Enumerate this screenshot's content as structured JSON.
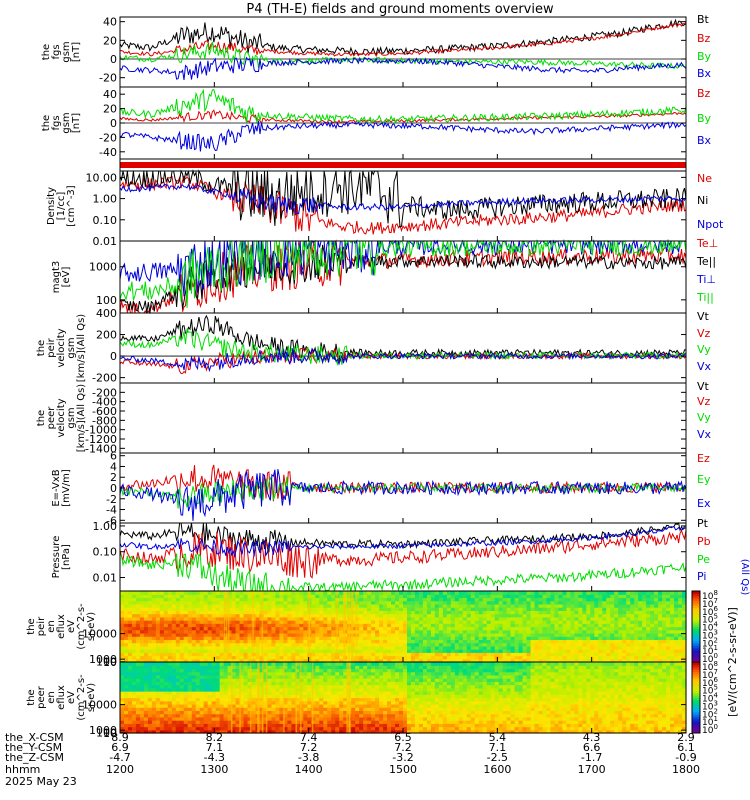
{
  "title": "P4 (TH-E) fields and ground moments overview",
  "colors": {
    "black": "#000000",
    "red": "#e00000",
    "green": "#00dd00",
    "blue": "#0000dd",
    "dark_blue": "#0010c0",
    "frame": "#000000"
  },
  "chart_data": [
    {
      "type": "line",
      "id": "fgs_gsm_1",
      "ylabel": [
        "the",
        "fgs",
        "gsm",
        "[nT]"
      ],
      "ylim": [
        -30,
        45
      ],
      "yticks": [
        40,
        20,
        0,
        -20
      ],
      "zero_line": true,
      "series": [
        {
          "name": "Bt",
          "color": "black",
          "values": [
            15,
            12,
            25,
            30,
            18,
            12,
            10,
            9,
            8,
            9,
            10,
            12,
            14,
            17,
            20,
            24,
            28,
            35,
            40
          ],
          "noise": 4,
          "burst": [
            0.1,
            0.25
          ]
        },
        {
          "name": "Bz",
          "color": "red",
          "values": [
            8,
            5,
            10,
            15,
            10,
            8,
            6,
            5,
            5,
            6,
            8,
            10,
            12,
            15,
            18,
            22,
            27,
            33,
            38
          ],
          "noise": 2,
          "burst": [
            0.1,
            0.25
          ]
        },
        {
          "name": "By",
          "color": "green",
          "values": [
            2,
            0,
            5,
            10,
            0,
            -2,
            -2,
            -1,
            -1,
            -2,
            -2,
            -3,
            -3,
            -3,
            -4,
            -5,
            -6,
            -7,
            -8
          ],
          "noise": 3,
          "burst": [
            0.1,
            0.25
          ]
        },
        {
          "name": "Bx",
          "color": "blue",
          "values": [
            -10,
            -12,
            -15,
            -8,
            -6,
            -4,
            -3,
            -2,
            -2,
            -2,
            -3,
            -5,
            -8,
            -10,
            -12,
            -13,
            -10,
            -8,
            -6
          ],
          "noise": 3,
          "burst": [
            0.1,
            0.25
          ]
        }
      ],
      "legend": [
        "Bt",
        "Bz",
        "By",
        "Bx"
      ],
      "legend_colors": [
        "black",
        "red",
        "green",
        "blue"
      ]
    },
    {
      "type": "line",
      "id": "fgs_gsm_2",
      "ylabel": [
        "the",
        "fgs",
        "gsm",
        "[nT]"
      ],
      "ylim": [
        -50,
        50
      ],
      "yticks": [
        40,
        20,
        0,
        -20,
        -40
      ],
      "zero_line": true,
      "series": [
        {
          "name": "Bz",
          "color": "red",
          "values": [
            6,
            4,
            8,
            12,
            6,
            4,
            3,
            2,
            2,
            3,
            4,
            5,
            6,
            7,
            8,
            9,
            10,
            12,
            14
          ],
          "noise": 2,
          "burst": [
            0.1,
            0.25
          ]
        },
        {
          "name": "By",
          "color": "green",
          "values": [
            15,
            12,
            25,
            35,
            15,
            10,
            8,
            6,
            5,
            5,
            6,
            7,
            8,
            9,
            10,
            12,
            14,
            16,
            18
          ],
          "noise": 5,
          "burst": [
            0.1,
            0.25
          ]
        },
        {
          "name": "Bx",
          "color": "blue",
          "values": [
            -15,
            -20,
            -25,
            -30,
            -10,
            -6,
            -4,
            -3,
            -3,
            -4,
            -5,
            -8,
            -10,
            -12,
            -10,
            -8,
            -6,
            -4,
            -2
          ],
          "noise": 4,
          "burst": [
            0.1,
            0.25
          ]
        }
      ],
      "legend": [
        "Bz",
        "By",
        "Bx"
      ],
      "legend_colors": [
        "red",
        "green",
        "blue"
      ]
    },
    {
      "type": "bar",
      "id": "mode_bar",
      "color": "red"
    },
    {
      "type": "line",
      "id": "density",
      "log": true,
      "ylabel": [
        "Density",
        "[1/cc]",
        "[cm^-3]"
      ],
      "ylim": [
        0.01,
        20
      ],
      "yticks": [
        10.0,
        1.0,
        0.1,
        0.01
      ],
      "ytick_labels": [
        "10.00",
        "1.00",
        "0.10",
        "0.01"
      ],
      "series": [
        {
          "name": "Ne",
          "color": "red",
          "values": [
            5,
            5,
            6,
            2,
            0.8,
            0.3,
            0.1,
            0.05,
            0.04,
            0.05,
            0.06,
            0.08,
            0.1,
            0.12,
            0.15,
            0.2,
            0.3,
            0.4,
            0.5
          ],
          "noise": 0.3,
          "burst": [
            0.2,
            0.35
          ]
        },
        {
          "name": "Ni",
          "color": "black",
          "values": [
            10,
            10,
            12,
            4,
            2,
            1,
            3,
            5,
            3,
            0.5,
            0.3,
            0.3,
            0.4,
            0.5,
            0.6,
            0.7,
            0.8,
            0.9,
            1.0
          ],
          "noise": 0.5,
          "burst": [
            0.2,
            0.5
          ]
        },
        {
          "name": "Npot",
          "color": "blue",
          "values": [
            3,
            3,
            4,
            2,
            1,
            0.5,
            0.5,
            0.4,
            0.4,
            0.4,
            0.5,
            0.6,
            0.7,
            0.8,
            0.8,
            0.9,
            0.9,
            1.0,
            1.0
          ],
          "noise": 0.15,
          "burst": [
            0.2,
            0.35
          ]
        }
      ],
      "legend": [
        "Ne",
        "Ni",
        "Npot"
      ],
      "legend_colors": [
        "red",
        "black",
        "blue"
      ]
    },
    {
      "type": "line",
      "id": "temperature",
      "log": true,
      "ylabel": [
        "magt3",
        "[eV]"
      ],
      "ylim": [
        40,
        6000
      ],
      "yticks": [
        1000,
        100
      ],
      "ytick_labels": [
        "1000",
        "100"
      ],
      "series": [
        {
          "name": "Te⊥",
          "color": "red",
          "values": [
            60,
            50,
            150,
            400,
            800,
            1000,
            1200,
            1400,
            1500,
            1600,
            1700,
            1800,
            1900,
            2000,
            2000,
            2100,
            2100,
            2200,
            2200
          ],
          "noise": 0.25,
          "burst": [
            0.1,
            0.4
          ]
        },
        {
          "name": "Te||",
          "color": "black",
          "values": [
            70,
            60,
            180,
            500,
            900,
            1100,
            1300,
            1400,
            1500,
            1500,
            1500,
            1500,
            1400,
            1400,
            1400,
            1400,
            1300,
            1300,
            1300
          ],
          "noise": 0.2,
          "burst": [
            0.1,
            0.4
          ]
        },
        {
          "name": "Ti⊥",
          "color": "blue",
          "values": [
            600,
            700,
            800,
            1500,
            2500,
            3000,
            3500,
            4000,
            4200,
            4300,
            4400,
            4500,
            4500,
            4600,
            4600,
            4600,
            4700,
            4700,
            4700
          ],
          "noise": 0.3,
          "burst": [
            0.1,
            0.45
          ]
        },
        {
          "name": "Ti||",
          "color": "green",
          "values": [
            200,
            180,
            300,
            1000,
            2000,
            2800,
            3200,
            3600,
            3800,
            3900,
            4000,
            4100,
            4100,
            4200,
            4200,
            4300,
            4300,
            4300,
            4400
          ],
          "noise": 0.3,
          "burst": [
            0.1,
            0.45
          ]
        }
      ],
      "legend": [
        "Te⊥",
        "Te||",
        "Ti⊥",
        "Ti||"
      ],
      "legend_colors": [
        "red",
        "black",
        "blue",
        "green"
      ]
    },
    {
      "type": "line",
      "id": "peir_velocity",
      "ylabel": [
        "the",
        "peir",
        "velocity",
        "gsm",
        "[km/s](All Qs)"
      ],
      "ylim": [
        -250,
        400
      ],
      "yticks": [
        400,
        200,
        0,
        -200
      ],
      "zero_line": true,
      "series": [
        {
          "name": "Vt",
          "color": "black",
          "values": [
            180,
            150,
            250,
            300,
            150,
            80,
            50,
            40,
            30,
            30,
            30,
            30,
            30,
            30,
            30,
            30,
            30,
            30,
            30
          ],
          "noise": 30,
          "burst": [
            0.1,
            0.4
          ]
        },
        {
          "name": "Vz",
          "color": "red",
          "values": [
            -50,
            -80,
            -100,
            -50,
            -20,
            -10,
            0,
            0,
            0,
            0,
            0,
            0,
            0,
            0,
            0,
            0,
            0,
            0,
            0
          ],
          "noise": 25,
          "burst": [
            0.1,
            0.4
          ]
        },
        {
          "name": "Vy",
          "color": "green",
          "values": [
            120,
            100,
            180,
            100,
            40,
            20,
            10,
            5,
            5,
            5,
            5,
            5,
            5,
            5,
            5,
            5,
            5,
            5,
            5
          ],
          "noise": 30,
          "burst": [
            0.1,
            0.4
          ]
        },
        {
          "name": "Vx",
          "color": "blue",
          "values": [
            -20,
            -40,
            -80,
            -60,
            -10,
            0,
            0,
            0,
            0,
            0,
            0,
            0,
            0,
            0,
            0,
            0,
            0,
            0,
            0
          ],
          "noise": 25,
          "burst": [
            0.1,
            0.4
          ]
        }
      ],
      "legend": [
        "Vt",
        "Vz",
        "Vy",
        "Vx"
      ],
      "legend_colors": [
        "black",
        "red",
        "green",
        "blue"
      ]
    },
    {
      "type": "line",
      "id": "peer_velocity",
      "ylabel": [
        "the",
        "peer",
        "velocity",
        "gsm",
        "[km/s](All Qs)"
      ],
      "ylim": [
        -1500,
        0
      ],
      "yticks": [
        -200,
        -400,
        -600,
        -800,
        -1000,
        -1200,
        -1400
      ],
      "series": [],
      "legend": [
        "Vt",
        "Vz",
        "Vy",
        "Vx"
      ],
      "legend_colors": [
        "black",
        "red",
        "green",
        "blue"
      ]
    },
    {
      "type": "line",
      "id": "efield",
      "ylabel": [
        "E=-VxB",
        "[mV/m]"
      ],
      "ylim": [
        -6.5,
        6.5
      ],
      "yticks": [
        6,
        4,
        2,
        0,
        -2,
        -4,
        -6
      ],
      "series": [
        {
          "name": "Ez",
          "color": "red",
          "values": [
            0.5,
            0.8,
            2,
            1.5,
            0.5,
            0.3,
            0.2,
            0.1,
            0.1,
            0.1,
            0.1,
            0.1,
            0.1,
            0.1,
            0.1,
            0.1,
            0.1,
            0.1,
            0.1
          ],
          "noise": 1.0,
          "burst": [
            0.1,
            0.3
          ]
        },
        {
          "name": "Ey",
          "color": "green",
          "values": [
            -0.5,
            -1,
            -2,
            -1,
            -0.3,
            -0.1,
            0,
            0,
            0,
            0,
            0,
            0,
            0,
            0,
            0,
            0,
            0,
            0,
            0
          ],
          "noise": 0.8,
          "burst": [
            0.1,
            0.3
          ]
        },
        {
          "name": "Ex",
          "color": "blue",
          "values": [
            -0.5,
            -1,
            -3,
            -2,
            -0.5,
            0,
            0,
            0,
            0,
            0,
            0,
            0,
            0,
            0,
            0,
            0,
            0,
            0,
            0
          ],
          "noise": 1.2,
          "burst": [
            0.1,
            0.3
          ]
        }
      ],
      "legend": [
        "Ez",
        "Ey",
        "Ex"
      ],
      "legend_colors": [
        "red",
        "green",
        "blue"
      ]
    },
    {
      "type": "line",
      "id": "pressure",
      "log": true,
      "ylabel": [
        "Pressure",
        "[nPa]"
      ],
      "ylim": [
        0.003,
        1.3
      ],
      "yticks": [
        1.0,
        0.1,
        0.01
      ],
      "ytick_labels": [
        "1.00",
        "0.10",
        "0.01"
      ],
      "series": [
        {
          "name": "Pt",
          "color": "black",
          "values": [
            0.5,
            0.4,
            0.6,
            0.4,
            0.3,
            0.25,
            0.22,
            0.2,
            0.2,
            0.2,
            0.22,
            0.25,
            0.28,
            0.3,
            0.35,
            0.4,
            0.5,
            0.7,
            1.0
          ],
          "noise": 0.15,
          "burst": [
            0.1,
            0.3
          ]
        },
        {
          "name": "Pb",
          "color": "red",
          "values": [
            0.08,
            0.05,
            0.1,
            0.12,
            0.08,
            0.06,
            0.05,
            0.05,
            0.05,
            0.06,
            0.07,
            0.08,
            0.1,
            0.12,
            0.15,
            0.2,
            0.25,
            0.3,
            0.4
          ],
          "noise": 0.25,
          "burst": [
            0.1,
            0.35
          ]
        },
        {
          "name": "Pe",
          "color": "green",
          "values": [
            0.05,
            0.03,
            0.04,
            0.01,
            0.005,
            0.004,
            0.004,
            0.004,
            0.005,
            0.005,
            0.006,
            0.007,
            0.008,
            0.009,
            0.01,
            0.012,
            0.015,
            0.02,
            0.025
          ],
          "noise": 0.2,
          "burst": [
            0.1,
            0.3
          ]
        },
        {
          "name": "Pi",
          "color": "blue",
          "values": [
            0.2,
            0.15,
            0.2,
            0.15,
            0.12,
            0.15,
            0.15,
            0.16,
            0.16,
            0.17,
            0.18,
            0.2,
            0.22,
            0.25,
            0.3,
            0.35,
            0.45,
            0.6,
            0.9
          ],
          "noise": 0.1,
          "burst": [
            0.1,
            0.3
          ]
        }
      ],
      "legend": [
        "Pt",
        "Pb",
        "Pe",
        "Pi"
      ],
      "legend_colors": [
        "black",
        "red",
        "green",
        "blue"
      ],
      "right_note": "(All Qs)"
    },
    {
      "type": "heatmap",
      "id": "peir_eflux",
      "ylabel": [
        "the",
        "peir",
        "en",
        "eflux",
        "eV",
        "(cm^2-s-",
        "sr-eV)"
      ],
      "ylim": [
        5,
        25000
      ],
      "yticks": [
        10000,
        1000,
        100,
        10
      ],
      "ytick_labels": [
        "10000",
        "1000",
        "100",
        "10"
      ],
      "profile": "ion"
    },
    {
      "type": "heatmap",
      "id": "peer_eflux",
      "ylabel": [
        "the",
        "peer",
        "en",
        "eflux",
        "eV",
        "(cm^2-s-",
        "sr-eV)"
      ],
      "ylim": [
        5,
        25000
      ],
      "yticks": [
        10000,
        1000,
        100,
        10
      ],
      "ytick_labels": [
        "10000",
        "1000",
        "100",
        "10"
      ],
      "profile": "electron"
    }
  ],
  "colorbar": {
    "label": "[eV/(cm^2-s-sr-eV)]",
    "ticks": [
      "10^8",
      "10^7",
      "10^6",
      "10^5",
      "10^4",
      "10^3",
      "10^2",
      "10^1",
      "10^0"
    ]
  },
  "xaxis": {
    "time_range": [
      1200,
      1800
    ],
    "rows": [
      {
        "label": "the_X-CSM",
        "values": [
          "8.9",
          "8.2",
          "7.4",
          "6.5",
          "5.4",
          "4.3",
          "2.9"
        ]
      },
      {
        "label": "the_Y-CSM",
        "values": [
          "6.9",
          "7.1",
          "7.2",
          "7.2",
          "7.1",
          "6.6",
          "6.1"
        ]
      },
      {
        "label": "the_Z-CSM",
        "values": [
          "-4.7",
          "-4.3",
          "-3.8",
          "-3.2",
          "-2.5",
          "-1.7",
          "-0.9"
        ]
      },
      {
        "label": "hhmm",
        "values": [
          "1200",
          "1300",
          "1400",
          "1500",
          "1600",
          "1700",
          "1800"
        ]
      }
    ],
    "date": "2025 May 23"
  }
}
